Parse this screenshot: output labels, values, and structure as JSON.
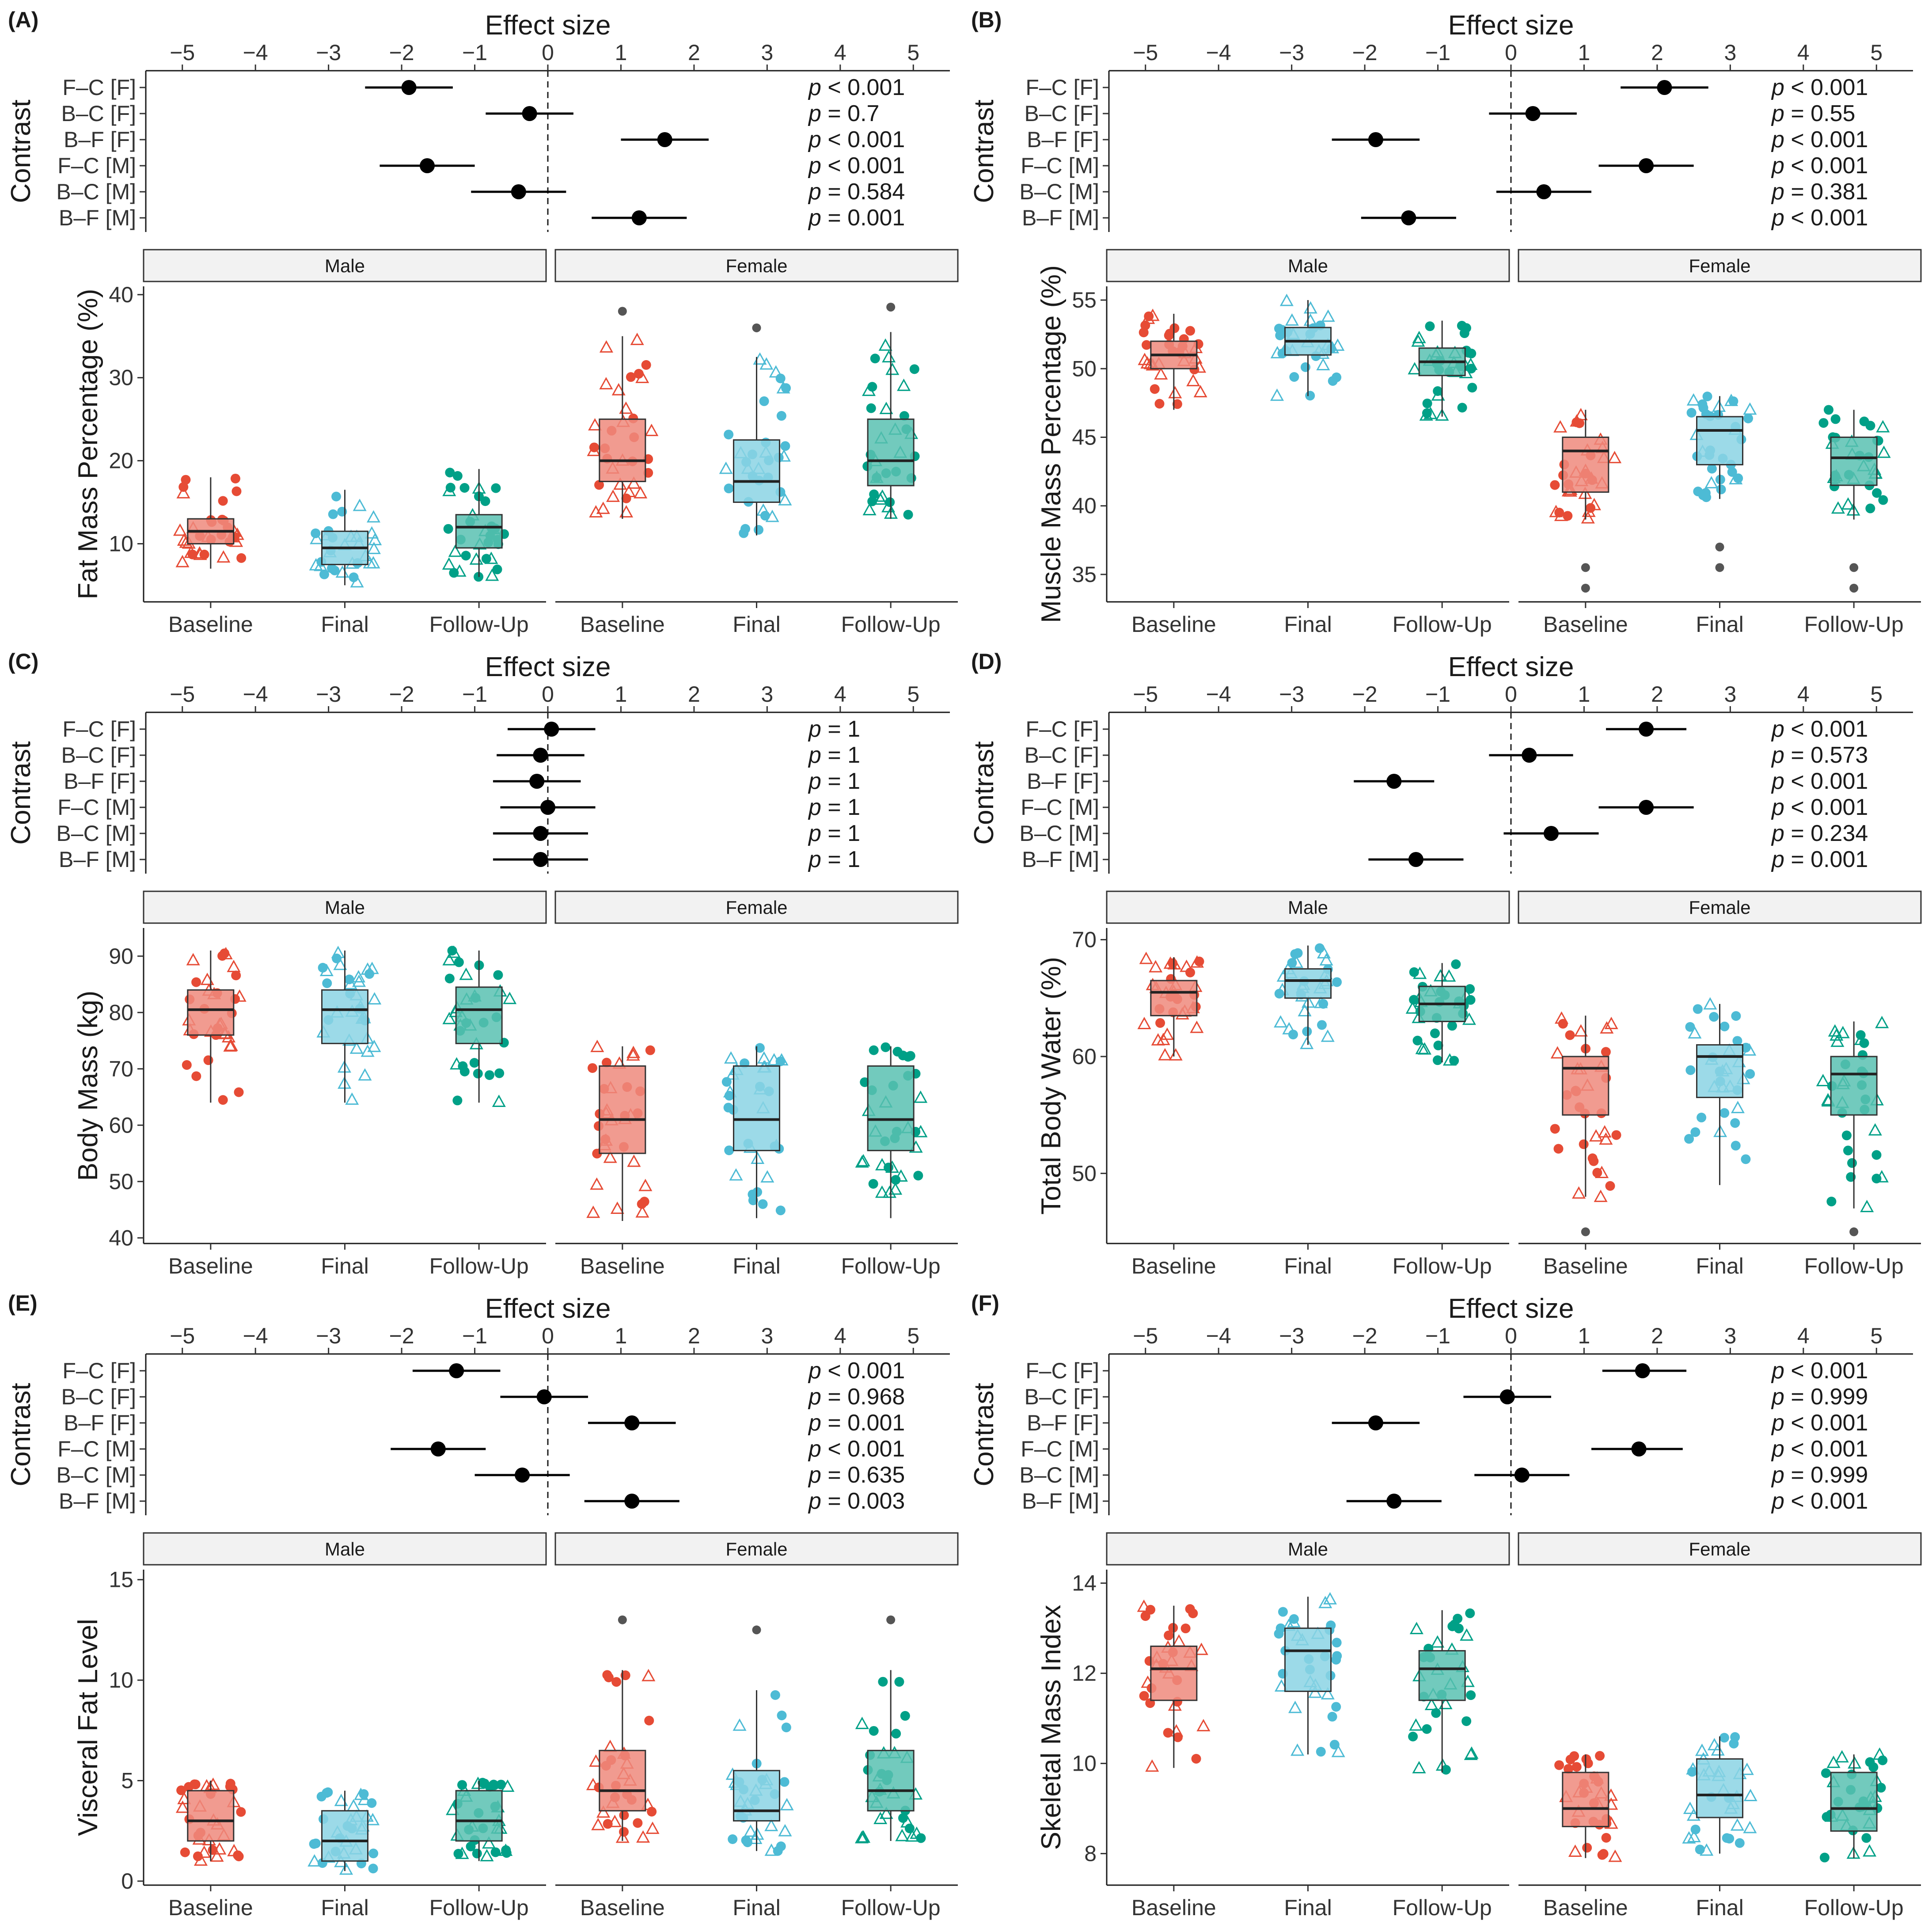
{
  "figure": {
    "effect_axis_title": "Effect size",
    "contrast_axis_title": "Contrast",
    "effect_ticks": [
      "−5",
      "−4",
      "−3",
      "−2",
      "−1",
      "0",
      "1",
      "2",
      "3",
      "4",
      "5"
    ],
    "contrasts": [
      "F–C [F]",
      "B–C [F]",
      "B–F [F]",
      "F–C [M]",
      "B–C [M]",
      "B–F [M]"
    ],
    "facets": [
      "Male",
      "Female"
    ],
    "timepoints": [
      "Baseline",
      "Final",
      "Follow-Up"
    ],
    "colors": {
      "Baseline": "#E64B35",
      "Final": "#4DBBD5",
      "Follow-Up": "#00A087",
      "outlier": "#555555",
      "strip": "#f2f2f2"
    }
  },
  "chart_data": [
    {
      "panel": "(A)",
      "type": "forest+boxplot",
      "ylabel": "Fat Mass Percentage (%)",
      "ylim": [
        3,
        41
      ],
      "yticks": [
        10,
        20,
        30,
        40
      ],
      "effects": [
        {
          "est": -1.9,
          "lo": -2.5,
          "hi": -1.3,
          "p": "< 0.001"
        },
        {
          "est": -0.25,
          "lo": -0.85,
          "hi": 0.35,
          "p": "= 0.7"
        },
        {
          "est": 1.6,
          "lo": 1.0,
          "hi": 2.2,
          "p": "< 0.001"
        },
        {
          "est": -1.65,
          "lo": -2.3,
          "hi": -1.0,
          "p": "< 0.001"
        },
        {
          "est": -0.4,
          "lo": -1.05,
          "hi": 0.25,
          "p": "= 0.584"
        },
        {
          "est": 1.25,
          "lo": 0.6,
          "hi": 1.9,
          "p": "= 0.001"
        }
      ],
      "boxes": {
        "Male": [
          [
            7,
            10,
            11.5,
            13,
            18
          ],
          [
            5,
            7.5,
            9.5,
            11.5,
            16.5
          ],
          [
            6,
            9.5,
            12,
            13.5,
            19
          ]
        ],
        "Female": [
          [
            13,
            17.5,
            20,
            25,
            35
          ],
          [
            11,
            15,
            17.5,
            22.5,
            32.5
          ],
          [
            13,
            17,
            20,
            25,
            35.5
          ]
        ]
      },
      "outliers": {
        "Male": [
          [],
          [],
          []
        ],
        "Female": [
          [
            38
          ],
          [
            36
          ],
          [
            38.5
          ]
        ]
      }
    },
    {
      "panel": "(B)",
      "type": "forest+boxplot",
      "ylabel": "Muscle Mass Percentage (%)",
      "ylim": [
        33,
        56
      ],
      "yticks": [
        35,
        40,
        45,
        50,
        55
      ],
      "effects": [
        {
          "est": 2.1,
          "lo": 1.5,
          "hi": 2.7,
          "p": "< 0.001"
        },
        {
          "est": 0.3,
          "lo": -0.3,
          "hi": 0.9,
          "p": "= 0.55"
        },
        {
          "est": -1.85,
          "lo": -2.45,
          "hi": -1.25,
          "p": "< 0.001"
        },
        {
          "est": 1.85,
          "lo": 1.2,
          "hi": 2.5,
          "p": "< 0.001"
        },
        {
          "est": 0.45,
          "lo": -0.2,
          "hi": 1.1,
          "p": "= 0.381"
        },
        {
          "est": -1.4,
          "lo": -2.05,
          "hi": -0.75,
          "p": "< 0.001"
        }
      ],
      "boxes": {
        "Male": [
          [
            47,
            50,
            51,
            52,
            54
          ],
          [
            48,
            51,
            52,
            53,
            55
          ],
          [
            46.5,
            49.5,
            50.5,
            51.5,
            53.5
          ]
        ],
        "Female": [
          [
            39,
            41,
            44,
            45,
            47
          ],
          [
            40.5,
            43,
            45.5,
            46.5,
            48
          ],
          [
            39,
            41.5,
            43.5,
            45,
            47
          ]
        ]
      },
      "outliers": {
        "Male": [
          [],
          [],
          []
        ],
        "Female": [
          [
            34,
            35.5
          ],
          [
            35.5,
            37
          ],
          [
            34,
            35.5
          ]
        ]
      }
    },
    {
      "panel": "(C)",
      "type": "forest+boxplot",
      "ylabel": "Body Mass (kg)",
      "ylim": [
        39,
        95
      ],
      "yticks": [
        40,
        50,
        60,
        70,
        80,
        90
      ],
      "effects": [
        {
          "est": 0.05,
          "lo": -0.55,
          "hi": 0.65,
          "p": "= 1"
        },
        {
          "est": -0.1,
          "lo": -0.7,
          "hi": 0.5,
          "p": "= 1"
        },
        {
          "est": -0.15,
          "lo": -0.75,
          "hi": 0.45,
          "p": "= 1"
        },
        {
          "est": 0.0,
          "lo": -0.65,
          "hi": 0.65,
          "p": "= 1"
        },
        {
          "est": -0.1,
          "lo": -0.75,
          "hi": 0.55,
          "p": "= 1"
        },
        {
          "est": -0.1,
          "lo": -0.75,
          "hi": 0.55,
          "p": "= 1"
        }
      ],
      "boxes": {
        "Male": [
          [
            64,
            76,
            80.5,
            84,
            91
          ],
          [
            64,
            74.5,
            80.5,
            84,
            91
          ],
          [
            64,
            74.5,
            80.5,
            84.5,
            91
          ]
        ],
        "Female": [
          [
            43,
            55,
            61,
            70.5,
            74
          ],
          [
            43.5,
            55.5,
            61,
            70.5,
            74
          ],
          [
            43.5,
            55.5,
            61,
            70.5,
            74
          ]
        ]
      },
      "outliers": {
        "Male": [
          [],
          [],
          []
        ],
        "Female": [
          [],
          [],
          []
        ]
      }
    },
    {
      "panel": "(D)",
      "type": "forest+boxplot",
      "ylabel": "Total Body Water (%)",
      "ylim": [
        44,
        71
      ],
      "yticks": [
        50,
        60,
        70
      ],
      "effects": [
        {
          "est": 1.85,
          "lo": 1.3,
          "hi": 2.4,
          "p": "< 0.001"
        },
        {
          "est": 0.25,
          "lo": -0.3,
          "hi": 0.85,
          "p": "= 0.573"
        },
        {
          "est": -1.6,
          "lo": -2.15,
          "hi": -1.05,
          "p": "< 0.001"
        },
        {
          "est": 1.85,
          "lo": 1.2,
          "hi": 2.5,
          "p": "< 0.001"
        },
        {
          "est": 0.55,
          "lo": -0.1,
          "hi": 1.2,
          "p": "= 0.234"
        },
        {
          "est": -1.3,
          "lo": -1.95,
          "hi": -0.65,
          "p": "= 0.001"
        }
      ],
      "boxes": {
        "Male": [
          [
            60,
            63.5,
            65.5,
            66.5,
            68.5
          ],
          [
            61,
            65,
            66.5,
            67.5,
            69.5
          ],
          [
            59.5,
            63,
            64.5,
            66,
            68
          ]
        ],
        "Female": [
          [
            48,
            55,
            59,
            60,
            63.5
          ],
          [
            49,
            56.5,
            60,
            61,
            64.5
          ],
          [
            47,
            55,
            58.5,
            60,
            63
          ]
        ]
      },
      "outliers": {
        "Male": [
          [],
          [],
          []
        ],
        "Female": [
          [
            45
          ],
          [],
          [
            45
          ]
        ]
      }
    },
    {
      "panel": "(E)",
      "type": "forest+boxplot",
      "ylabel": "Visceral Fat Level",
      "ylim": [
        -0.2,
        15.5
      ],
      "yticks": [
        0,
        5,
        10,
        15
      ],
      "effects": [
        {
          "est": -1.25,
          "lo": -1.85,
          "hi": -0.65,
          "p": "< 0.001"
        },
        {
          "est": -0.05,
          "lo": -0.65,
          "hi": 0.55,
          "p": "= 0.968"
        },
        {
          "est": 1.15,
          "lo": 0.55,
          "hi": 1.75,
          "p": "= 0.001"
        },
        {
          "est": -1.5,
          "lo": -2.15,
          "hi": -0.85,
          "p": "< 0.001"
        },
        {
          "est": -0.35,
          "lo": -1.0,
          "hi": 0.3,
          "p": "= 0.635"
        },
        {
          "est": 1.15,
          "lo": 0.5,
          "hi": 1.8,
          "p": "= 0.003"
        }
      ],
      "boxes": {
        "Male": [
          [
            1,
            2,
            3,
            4.5,
            5
          ],
          [
            0.5,
            1,
            2,
            3.5,
            4.5
          ],
          [
            1,
            2,
            3,
            4.5,
            5
          ]
        ],
        "Female": [
          [
            2,
            3.5,
            4.5,
            6.5,
            10.5
          ],
          [
            1.5,
            3,
            3.5,
            5.5,
            9.5
          ],
          [
            2,
            3.5,
            4.5,
            6.5,
            10.5
          ]
        ]
      },
      "outliers": {
        "Male": [
          [],
          [],
          []
        ],
        "Female": [
          [
            13
          ],
          [
            12.5
          ],
          [
            13
          ]
        ]
      }
    },
    {
      "panel": "(F)",
      "type": "forest+boxplot",
      "ylabel": "Skeletal Mass Index",
      "ylim": [
        7.3,
        14.3
      ],
      "yticks": [
        8,
        10,
        12,
        14
      ],
      "effects": [
        {
          "est": 1.8,
          "lo": 1.25,
          "hi": 2.4,
          "p": "< 0.001"
        },
        {
          "est": -0.05,
          "lo": -0.65,
          "hi": 0.55,
          "p": "= 0.999"
        },
        {
          "est": -1.85,
          "lo": -2.45,
          "hi": -1.25,
          "p": "< 0.001"
        },
        {
          "est": 1.75,
          "lo": 1.1,
          "hi": 2.35,
          "p": "< 0.001"
        },
        {
          "est": 0.15,
          "lo": -0.5,
          "hi": 0.8,
          "p": "= 0.999"
        },
        {
          "est": -1.6,
          "lo": -2.25,
          "hi": -0.95,
          "p": "< 0.001"
        }
      ],
      "boxes": {
        "Male": [
          [
            9.9,
            11.4,
            12.1,
            12.6,
            13.5
          ],
          [
            10.2,
            11.6,
            12.5,
            13.0,
            13.7
          ],
          [
            9.8,
            11.4,
            12.1,
            12.5,
            13.4
          ]
        ],
        "Female": [
          [
            7.9,
            8.6,
            9.0,
            9.8,
            10.2
          ],
          [
            8.0,
            8.8,
            9.3,
            10.1,
            10.6
          ],
          [
            7.9,
            8.5,
            9.0,
            9.8,
            10.2
          ]
        ]
      },
      "outliers": {
        "Male": [
          [],
          [],
          []
        ],
        "Female": [
          [],
          [],
          []
        ]
      }
    }
  ]
}
